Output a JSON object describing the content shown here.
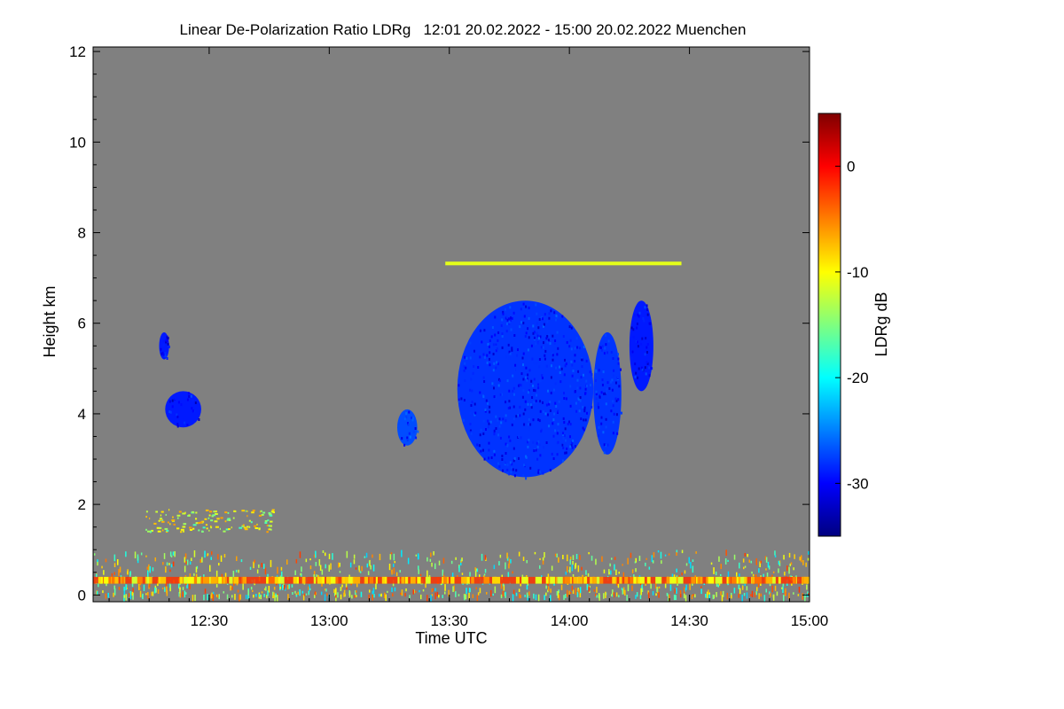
{
  "chart_data": {
    "type": "heatmap",
    "title": "Linear De-Polarization Ratio LDRg   12:01 20.02.2022 - 15:00 20.02.2022 Muenchen",
    "xlabel": "Time UTC",
    "ylabel": "Height km",
    "colorbar_label": "LDRg dB",
    "x_range_min": [
      721,
      900
    ],
    "y_range_km": [
      -0.15,
      12.1
    ],
    "x_ticks": [
      {
        "label": "12:30",
        "minute": 750
      },
      {
        "label": "13:00",
        "minute": 780
      },
      {
        "label": "13:30",
        "minute": 810
      },
      {
        "label": "14:00",
        "minute": 840
      },
      {
        "label": "14:30",
        "minute": 870
      },
      {
        "label": "15:00",
        "minute": 900
      }
    ],
    "y_ticks": [
      0,
      2,
      4,
      6,
      8,
      10,
      12
    ],
    "colorbar_range": [
      -35,
      5
    ],
    "colorbar_ticks": [
      0,
      -10,
      -20,
      -30
    ],
    "no_data_color": "#808080",
    "colormap": [
      "#00007f",
      "#0000ff",
      "#007fff",
      "#00ffff",
      "#7fff7f",
      "#ffff00",
      "#ff7f00",
      "#ff0000",
      "#7f0000"
    ],
    "features": [
      {
        "name": "cloud-small-upper",
        "t": [
          737.5,
          740
        ],
        "h": [
          5.2,
          5.8
        ],
        "ldr": -29
      },
      {
        "name": "cloud-left",
        "t": [
          739,
          748
        ],
        "h": [
          3.7,
          4.5
        ],
        "ldr": -29
      },
      {
        "name": "cloud-main",
        "t": [
          812,
          846
        ],
        "h": [
          2.6,
          6.5
        ],
        "ldr": -28
      },
      {
        "name": "cloud-right-lobe",
        "t": [
          846,
          853
        ],
        "h": [
          3.1,
          5.8
        ],
        "ldr": -28
      },
      {
        "name": "cloud-far-right",
        "t": [
          855,
          861
        ],
        "h": [
          4.5,
          6.5
        ],
        "ldr": -29
      },
      {
        "name": "cloud-mid-small",
        "t": [
          797,
          802
        ],
        "h": [
          3.3,
          4.1
        ],
        "ldr": -27
      },
      {
        "name": "cirrus-line",
        "t": [
          809,
          868
        ],
        "h": [
          7.28,
          7.36
        ],
        "ldr": -11
      },
      {
        "name": "aerosol-band-1p5km",
        "t": [
          734,
          766
        ],
        "h": [
          1.4,
          1.9
        ],
        "ldr": -14
      },
      {
        "name": "boundary-layer-noise",
        "t": [
          721,
          900
        ],
        "h": [
          0.0,
          1.0
        ],
        "ldr": -10
      },
      {
        "name": "surface-band",
        "t": [
          721,
          900
        ],
        "h": [
          0.25,
          0.4
        ],
        "ldr": -2
      }
    ]
  }
}
